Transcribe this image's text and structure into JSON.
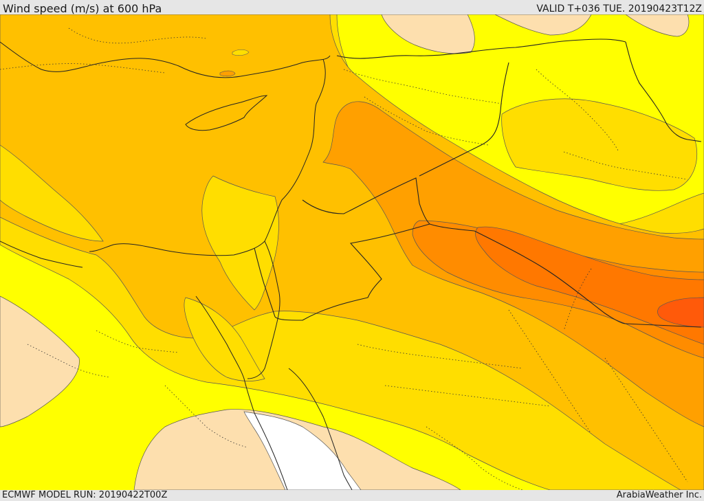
{
  "header": {
    "title": "Wind speed (m/s) at 600 hPa",
    "valid_time": "VALID T+036 TUE. 20190423T12Z"
  },
  "footer": {
    "model_run": "ECMWF MODEL RUN: 20190422T00Z",
    "credit": "ArabiaWeather Inc."
  },
  "colors": {
    "band_lowest": "#fddfae",
    "band_low": "#ffff00",
    "band_mid": "#ffde00",
    "band_mid_high": "#ffc000",
    "band_high": "#ffa000",
    "band_higher": "#ff8c00",
    "band_highest": "#ff7800",
    "band_peak": "#ff5a0a",
    "sea_white": "#ffffff"
  }
}
